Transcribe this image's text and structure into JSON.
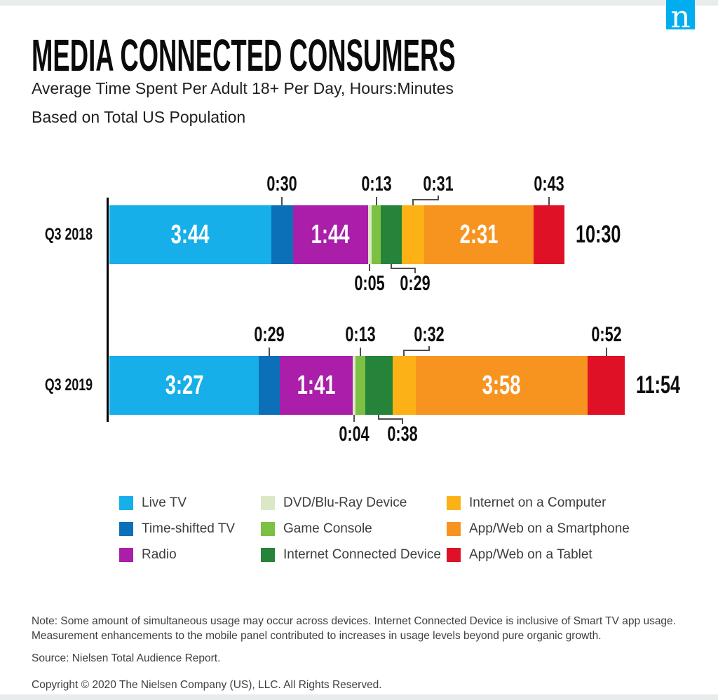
{
  "header": {
    "title": "MEDIA CONNECTED CONSUMERS",
    "subtitle_line1": "Average Time Spent Per Adult 18+ Per Day, Hours:Minutes",
    "subtitle_line2": "Based on Total US Population",
    "logo_letter": "n",
    "logo_color": "#00AEEF"
  },
  "chart_data": {
    "type": "bar",
    "stacked": true,
    "orientation": "horizontal",
    "unit": "hours:minutes",
    "legend_position": "bottom",
    "grid": false,
    "categories": [
      "Q3 2018",
      "Q3 2019"
    ],
    "series": [
      {
        "name": "Live TV",
        "color": "#16AFE9",
        "values": [
          "3:44",
          "3:27"
        ],
        "label_pos": "inside"
      },
      {
        "name": "Time-shifted TV",
        "color": "#0C70B8",
        "values": [
          "0:30",
          "0:29"
        ],
        "label_pos": "above"
      },
      {
        "name": "Radio",
        "color": "#AA1EA9",
        "values": [
          "1:44",
          "1:41"
        ],
        "label_pos": "inside"
      },
      {
        "name": "DVD/Blu-Ray Device",
        "color": "#DBE8C6",
        "values": [
          "0:05",
          "0:04"
        ],
        "label_pos": "below"
      },
      {
        "name": "Game Console",
        "color": "#7CC143",
        "values": [
          "0:13",
          "0:13"
        ],
        "label_pos": "above"
      },
      {
        "name": "Internet Connected Device",
        "color": "#26833A",
        "values": [
          "0:29",
          "0:38"
        ],
        "label_pos": "below-elbow"
      },
      {
        "name": "Internet on a Computer",
        "color": "#FCB216",
        "values": [
          "0:31",
          "0:32"
        ],
        "label_pos": "above-elbow"
      },
      {
        "name": "App/Web on a Smartphone",
        "color": "#F79420",
        "values": [
          "2:31",
          "3:58"
        ],
        "label_pos": "inside"
      },
      {
        "name": "App/Web on a Tablet",
        "color": "#DE1126",
        "values": [
          "0:43",
          "0:52"
        ],
        "label_pos": "above"
      }
    ],
    "totals": [
      "10:30",
      "11:54"
    ]
  },
  "footer": {
    "note": "Note: Some amount of simultaneous usage may occur across devices. Internet Connected Device is inclusive of Smart TV app usage. Measurement enhancements to the mobile panel contributed to increases in usage levels beyond pure organic growth.",
    "source": "Source: Nielsen Total Audience Report.",
    "copyright": "Copyright © 2020 The Nielsen Company (US), LLC. All Rights Reserved."
  }
}
